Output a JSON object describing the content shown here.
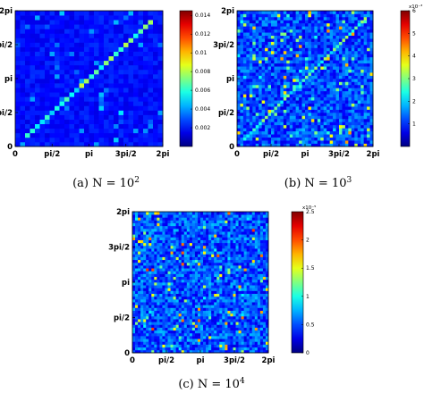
{
  "chart_data": [
    {
      "type": "heatmap",
      "caption": "(a)  N = 10",
      "caption_exp": "2",
      "x_ticks": [
        {
          "v": 0,
          "label": "0"
        },
        {
          "v": 1.5708,
          "label": "pi/2"
        },
        {
          "v": 3.1416,
          "label": "pi"
        },
        {
          "v": 4.7124,
          "label": "3pi/2"
        },
        {
          "v": 6.2832,
          "label": "2pi"
        }
      ],
      "y_ticks": [
        {
          "v": 0,
          "label": "0"
        },
        {
          "v": 1.5708,
          "label": "pi/2"
        },
        {
          "v": 3.1416,
          "label": "pi"
        },
        {
          "v": 4.7124,
          "label": "3pi/2"
        },
        {
          "v": 6.2832,
          "label": "2pi"
        }
      ],
      "xlim": [
        0,
        6.2832
      ],
      "ylim": [
        0,
        6.2832
      ],
      "colorbar": {
        "min": 0,
        "max": 0.0145,
        "ticks": [
          0.002,
          0.004,
          0.006,
          0.008,
          0.01,
          0.012,
          0.014
        ],
        "labels": [
          "0.002",
          "0.004",
          "0.006",
          "0.008",
          "0.01",
          "0.012",
          "0.014"
        ],
        "multiplier": ""
      },
      "colormap": "jet",
      "grid_size": 30,
      "background_level": 0.0015,
      "noise_spread": 0.0012,
      "diagonal": {
        "level": 0.0065,
        "spread": 0.004,
        "start": 0.05,
        "end": 0.95
      }
    },
    {
      "type": "heatmap",
      "caption": "(b)  N = 10",
      "caption_exp": "3",
      "x_ticks": [
        {
          "v": 0,
          "label": "0"
        },
        {
          "v": 1.5708,
          "label": "pi/2"
        },
        {
          "v": 3.1416,
          "label": "pi"
        },
        {
          "v": 4.7124,
          "label": "3pi/2"
        },
        {
          "v": 6.2832,
          "label": "2pi"
        }
      ],
      "y_ticks": [
        {
          "v": 0,
          "label": "0"
        },
        {
          "v": 1.5708,
          "label": "pi/2"
        },
        {
          "v": 3.1416,
          "label": "pi"
        },
        {
          "v": 4.7124,
          "label": "3pi/2"
        },
        {
          "v": 6.2832,
          "label": "2pi"
        }
      ],
      "xlim": [
        0,
        6.2832
      ],
      "ylim": [
        0,
        6.2832
      ],
      "colorbar": {
        "min": 0,
        "max": 6,
        "ticks": [
          1,
          2,
          3,
          4,
          5,
          6
        ],
        "labels": [
          "1",
          "2",
          "3",
          "4",
          "5",
          "6"
        ],
        "multiplier": "x10⁻³"
      },
      "colormap": "jet",
      "grid_size": 44,
      "background_level": 1.0,
      "noise_spread": 1.3,
      "diagonal": {
        "level": 2.6,
        "spread": 1.4,
        "start": 0.03,
        "end": 0.97
      }
    },
    {
      "type": "heatmap",
      "caption": "(c)  N = 10",
      "caption_exp": "4",
      "x_ticks": [
        {
          "v": 0,
          "label": "0"
        },
        {
          "v": 1.5708,
          "label": "pi/2"
        },
        {
          "v": 3.1416,
          "label": "pi"
        },
        {
          "v": 4.7124,
          "label": "3pi/2"
        },
        {
          "v": 6.2832,
          "label": "2pi"
        }
      ],
      "y_ticks": [
        {
          "v": 0,
          "label": "0"
        },
        {
          "v": 1.5708,
          "label": "pi/2"
        },
        {
          "v": 3.1416,
          "label": "pi"
        },
        {
          "v": 4.7124,
          "label": "3pi/2"
        },
        {
          "v": 6.2832,
          "label": "2pi"
        }
      ],
      "xlim": [
        0,
        6.2832
      ],
      "ylim": [
        0,
        6.2832
      ],
      "colorbar": {
        "min": 0,
        "max": 2.5,
        "ticks": [
          0,
          0.5,
          1,
          1.5,
          2,
          2.5
        ],
        "labels": [
          "0",
          "0.5",
          "1",
          "1.5",
          "2",
          "2.5"
        ],
        "multiplier": "x10⁻⁵"
      },
      "colormap": "jet",
      "grid_size": 50,
      "background_level": 0.45,
      "noise_spread": 0.6,
      "diagonal": null
    }
  ]
}
